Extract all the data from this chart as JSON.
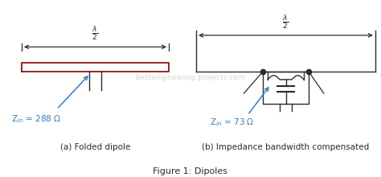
{
  "bg_color": "#ffffff",
  "line_color": "#2b2b2b",
  "dipole_color": "#8B0000",
  "arrow_color": "#3a7abf",
  "text_color": "#3a7abf",
  "label_color": "#2b2b2b",
  "watermark": "bestengineering projects.com",
  "title": "Figure 1: Dipoles",
  "label_a": "(a) Folded dipole",
  "label_b": "(b) Impedance bandwidth compensated",
  "zin_a": "Z$_{in}$ = 288 Ω",
  "zin_b": "Z$_{in}$ = 73 Ω"
}
